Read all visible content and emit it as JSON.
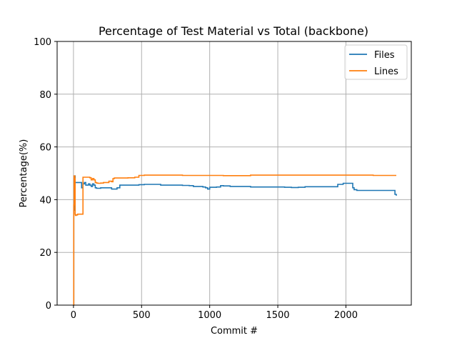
{
  "chart_data": {
    "type": "line",
    "title": "Percentage of Test Material vs Total (backbone)",
    "xlabel": "Commit #",
    "ylabel": "Percentage(%)",
    "xlim": [
      -120,
      2480
    ],
    "ylim": [
      0,
      100
    ],
    "xticks": [
      0,
      500,
      1000,
      1500,
      2000
    ],
    "yticks": [
      0,
      20,
      40,
      60,
      80,
      100
    ],
    "grid": true,
    "legend_position": "top-right",
    "colors": {
      "Files": "#1f77b4",
      "Lines": "#ff7f0e"
    },
    "series": [
      {
        "name": "Files",
        "x": [
          0,
          2,
          4,
          6,
          8,
          10,
          12,
          14,
          16,
          20,
          25,
          30,
          40,
          50,
          60,
          65,
          70,
          80,
          90,
          100,
          110,
          120,
          130,
          140,
          150,
          160,
          170,
          200,
          240,
          260,
          280,
          300,
          320,
          340,
          400,
          480,
          520,
          600,
          640,
          700,
          800,
          850,
          880,
          950,
          970,
          985,
          1000,
          1050,
          1080,
          1100,
          1150,
          1200,
          1300,
          1400,
          1500,
          1550,
          1600,
          1650,
          1700,
          1800,
          1900,
          1940,
          1960,
          1980,
          2000,
          2050,
          2060,
          2080,
          2100,
          2200,
          2300,
          2350,
          2360,
          2370
        ],
        "values": [
          0,
          36,
          48,
          47,
          49,
          49,
          46.5,
          46.5,
          46.5,
          46.5,
          46.5,
          46.5,
          46.5,
          46.5,
          44.5,
          44.5,
          46,
          46.5,
          45.5,
          45.5,
          46,
          45.5,
          45,
          46,
          45.5,
          44.5,
          44.3,
          44.5,
          44.5,
          44.5,
          44,
          44,
          44.5,
          45.5,
          45.5,
          45.7,
          45.8,
          45.8,
          45.5,
          45.5,
          45.4,
          45.3,
          45,
          44.8,
          44.5,
          44,
          44.7,
          44.8,
          45.3,
          45.2,
          45,
          45,
          44.8,
          44.8,
          44.8,
          44.7,
          44.6,
          44.7,
          44.9,
          44.9,
          44.9,
          45.8,
          45.8,
          46.2,
          46.2,
          44.5,
          43.8,
          43.5,
          43.5,
          43.5,
          43.5,
          43.5,
          42,
          41.5
        ]
      },
      {
        "name": "Lines",
        "x": [
          0,
          2,
          4,
          6,
          8,
          10,
          12,
          14,
          16,
          20,
          30,
          40,
          50,
          60,
          65,
          70,
          75,
          80,
          100,
          120,
          130,
          140,
          150,
          160,
          170,
          180,
          200,
          220,
          240,
          260,
          280,
          290,
          300,
          400,
          450,
          480,
          520,
          600,
          800,
          1000,
          1100,
          1280,
          1300,
          1500,
          1800,
          2000,
          2200,
          2370
        ],
        "values": [
          0,
          38,
          49,
          48,
          49,
          48,
          34.5,
          34,
          34,
          34.2,
          34.5,
          34.5,
          34.5,
          34.5,
          34.5,
          48.5,
          48.5,
          48.5,
          48.5,
          48.3,
          47.5,
          48,
          47.5,
          46.5,
          46.3,
          46.2,
          46.3,
          46.5,
          46.5,
          47,
          46.8,
          48,
          48.2,
          48.3,
          48.5,
          49.2,
          49.3,
          49.3,
          49.2,
          49.2,
          49.1,
          49.1,
          49.3,
          49.3,
          49.3,
          49.3,
          49.2,
          49.2
        ]
      }
    ]
  }
}
